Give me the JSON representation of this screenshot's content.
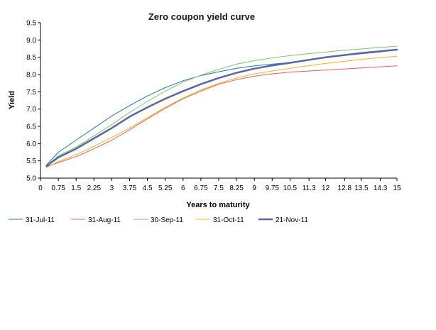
{
  "chart_data": {
    "type": "line",
    "title": "Zero coupon yield curve",
    "xlabel": "Years to maturity",
    "ylabel": "Yield",
    "xlim": [
      0,
      15
    ],
    "ylim": [
      5.0,
      9.5
    ],
    "x_ticks": [
      0,
      0.75,
      1.5,
      2.25,
      3,
      3.75,
      4.5,
      5.25,
      6,
      6.75,
      7.5,
      8.25,
      9,
      9.75,
      10.5,
      11.3,
      12,
      12.8,
      13.5,
      14.3,
      15
    ],
    "x_tick_labels": [
      "0",
      "0.75",
      "1.5",
      "2.25",
      "3",
      "3.75",
      "4.5",
      "5.25",
      "6",
      "6.75",
      "7.5",
      "8.25",
      "9",
      "9.75",
      "10.5",
      "11.3",
      "12",
      "12.8",
      "13.5",
      "14.3",
      "15"
    ],
    "y_ticks": [
      5.0,
      5.5,
      6.0,
      6.5,
      7.0,
      7.5,
      8.0,
      8.5,
      9.0,
      9.5
    ],
    "y_tick_labels": [
      "5.0",
      "5.5",
      "6.0",
      "6.5",
      "7.0",
      "7.5",
      "8.0",
      "8.5",
      "9.0",
      "9.5"
    ],
    "grid": false,
    "legend_position": "bottom",
    "x": [
      0.25,
      0.75,
      1.5,
      2.25,
      3,
      3.75,
      4.5,
      5.25,
      6,
      6.75,
      7.5,
      8.25,
      9,
      9.75,
      10.5,
      11.25,
      12,
      12.75,
      13.5,
      14.25,
      15
    ],
    "series": [
      {
        "name": "31-Jul-11",
        "color": "#1f77b4",
        "stroke": 1,
        "values": [
          5.38,
          5.75,
          6.1,
          6.45,
          6.8,
          7.1,
          7.38,
          7.62,
          7.82,
          7.97,
          8.08,
          8.18,
          8.25,
          8.3,
          8.35,
          8.42,
          8.5,
          8.55,
          8.6,
          8.65,
          8.72
        ]
      },
      {
        "name": "31-Aug-11",
        "color": "#e0605e",
        "stroke": 1,
        "values": [
          5.33,
          5.45,
          5.62,
          5.85,
          6.1,
          6.4,
          6.72,
          7.02,
          7.3,
          7.52,
          7.72,
          7.85,
          7.95,
          8.02,
          8.07,
          8.1,
          8.13,
          8.16,
          8.19,
          8.22,
          8.25
        ]
      },
      {
        "name": "30-Sep-11",
        "color": "#7bc46a",
        "stroke": 1,
        "values": [
          5.35,
          5.65,
          5.9,
          6.22,
          6.55,
          6.9,
          7.22,
          7.52,
          7.78,
          7.98,
          8.15,
          8.3,
          8.4,
          8.48,
          8.55,
          8.6,
          8.65,
          8.7,
          8.74,
          8.78,
          8.82
        ]
      },
      {
        "name": "31-Oct-11",
        "color": "#f4b020",
        "stroke": 1,
        "values": [
          5.3,
          5.48,
          5.68,
          5.92,
          6.18,
          6.45,
          6.75,
          7.05,
          7.32,
          7.55,
          7.75,
          7.9,
          8.02,
          8.1,
          8.18,
          8.25,
          8.32,
          8.38,
          8.44,
          8.49,
          8.53
        ]
      },
      {
        "name": "21-Nov-11",
        "color": "#5965a8",
        "stroke": 2.5,
        "values": [
          5.35,
          5.6,
          5.85,
          6.15,
          6.45,
          6.78,
          7.05,
          7.3,
          7.52,
          7.72,
          7.9,
          8.05,
          8.17,
          8.26,
          8.34,
          8.42,
          8.5,
          8.56,
          8.62,
          8.67,
          8.72
        ]
      }
    ]
  }
}
